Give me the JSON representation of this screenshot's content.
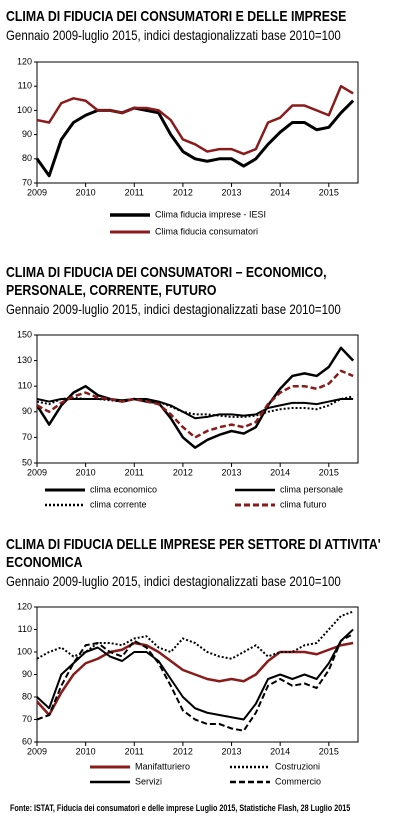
{
  "chart_data": [
    {
      "type": "line",
      "title": "CLIMA DI FIDUCIA DEI CONSUMATORI E DELLE IMPRESE",
      "subtitle": "Gennaio 2009-luglio 2015, indici destagionalizzati base 2010=100",
      "x": [
        2009,
        2009.25,
        2009.5,
        2009.75,
        2010,
        2010.25,
        2010.5,
        2010.75,
        2011,
        2011.25,
        2011.5,
        2011.75,
        2012,
        2012.25,
        2012.5,
        2012.75,
        2013,
        2013.25,
        2013.5,
        2013.75,
        2014,
        2014.25,
        2014.5,
        2014.75,
        2015,
        2015.25,
        2015.5
      ],
      "xlim": [
        2009,
        2015.6
      ],
      "xticks": [
        2009,
        2010,
        2011,
        2012,
        2013,
        2014,
        2015
      ],
      "ylim": [
        70,
        120
      ],
      "yticks": [
        70,
        80,
        90,
        100,
        110,
        120
      ],
      "series": [
        {
          "name": "Clima fiducia imprese - IESI",
          "color": "#000000",
          "line_style": "solid",
          "width": 3,
          "values": [
            80,
            73,
            88,
            95,
            98,
            100,
            100,
            99,
            101,
            100,
            99,
            90,
            83,
            80,
            79,
            80,
            80,
            77,
            80,
            86,
            91,
            95,
            95,
            92,
            93,
            99,
            104
          ]
        },
        {
          "name": "Clima fiducia consumatori",
          "color": "#8b1a1a",
          "line_style": "solid",
          "width": 2.5,
          "values": [
            96,
            95,
            103,
            105,
            104,
            100,
            100,
            99,
            101,
            101,
            100,
            96,
            88,
            86,
            83,
            84,
            84,
            82,
            84,
            95,
            97,
            102,
            102,
            100,
            98,
            110,
            107
          ]
        }
      ]
    },
    {
      "type": "line",
      "title": "CLIMA DI FIDUCIA DEI CONSUMATORI – ECONOMICO, PERSONALE, CORRENTE, FUTURO",
      "subtitle": "Gennaio 2009-luglio 2015, indici destagionalizzati base 2010=100",
      "x": [
        2009,
        2009.25,
        2009.5,
        2009.75,
        2010,
        2010.25,
        2010.5,
        2010.75,
        2011,
        2011.25,
        2011.5,
        2011.75,
        2012,
        2012.25,
        2012.5,
        2012.75,
        2013,
        2013.25,
        2013.5,
        2013.75,
        2014,
        2014.25,
        2014.5,
        2014.75,
        2015,
        2015.25,
        2015.5
      ],
      "xlim": [
        2009,
        2015.6
      ],
      "xticks": [
        2009,
        2010,
        2011,
        2012,
        2013,
        2014,
        2015
      ],
      "ylim": [
        50,
        150
      ],
      "yticks": [
        50,
        70,
        90,
        110,
        130,
        150
      ],
      "series": [
        {
          "name": "clima economico",
          "color": "#000000",
          "line_style": "solid",
          "width": 2.5,
          "values": [
            95,
            80,
            95,
            105,
            110,
            103,
            100,
            98,
            100,
            98,
            97,
            85,
            70,
            62,
            68,
            72,
            75,
            73,
            78,
            95,
            108,
            118,
            120,
            118,
            125,
            140,
            130
          ]
        },
        {
          "name": "clima personale",
          "color": "#000000",
          "line_style": "solid",
          "width": 2,
          "values": [
            100,
            98,
            100,
            100,
            100,
            100,
            100,
            99,
            100,
            100,
            98,
            95,
            90,
            85,
            86,
            88,
            88,
            87,
            88,
            93,
            95,
            97,
            97,
            96,
            98,
            100,
            100
          ]
        },
        {
          "name": "clima corrente",
          "color": "#000000",
          "line_style": "dotted",
          "width": 2,
          "values": [
            98,
            96,
            100,
            101,
            100,
            100,
            99,
            98,
            100,
            99,
            98,
            94,
            90,
            88,
            88,
            87,
            86,
            86,
            87,
            90,
            92,
            93,
            93,
            92,
            95,
            100,
            102
          ]
        },
        {
          "name": "clima futuro",
          "color": "#8b1a1a",
          "line_style": "dashed",
          "width": 2.5,
          "values": [
            95,
            90,
            97,
            102,
            105,
            101,
            100,
            98,
            100,
            98,
            96,
            88,
            78,
            70,
            75,
            78,
            80,
            78,
            82,
            96,
            105,
            110,
            110,
            108,
            112,
            122,
            118
          ]
        }
      ]
    },
    {
      "type": "line",
      "title": "CLIMA DI FIDUCIA DELLE IMPRESE PER SETTORE DI ATTIVITA' ECONOMICA",
      "subtitle": "Gennaio 2009-luglio 2015, indici destagionalizzati base 2010=100",
      "x": [
        2009,
        2009.25,
        2009.5,
        2009.75,
        2010,
        2010.25,
        2010.5,
        2010.75,
        2011,
        2011.25,
        2011.5,
        2011.75,
        2012,
        2012.25,
        2012.5,
        2012.75,
        2013,
        2013.25,
        2013.5,
        2013.75,
        2014,
        2014.25,
        2014.5,
        2014.75,
        2015,
        2015.25,
        2015.5
      ],
      "xlim": [
        2009,
        2015.6
      ],
      "xticks": [
        2009,
        2010,
        2011,
        2012,
        2013,
        2014,
        2015
      ],
      "ylim": [
        60,
        120
      ],
      "yticks": [
        60,
        70,
        80,
        90,
        100,
        110,
        120
      ],
      "series": [
        {
          "name": "Manifatturiero",
          "color": "#8b1a1a",
          "line_style": "solid",
          "width": 2.5,
          "values": [
            78,
            72,
            82,
            90,
            95,
            97,
            100,
            101,
            104,
            103,
            100,
            96,
            92,
            90,
            88,
            87,
            88,
            87,
            90,
            96,
            100,
            100,
            100,
            99,
            101,
            103,
            104
          ]
        },
        {
          "name": "Costruzioni",
          "color": "#000000",
          "line_style": "dotted",
          "width": 2,
          "values": [
            97,
            100,
            102,
            98,
            100,
            104,
            104,
            103,
            106,
            107,
            102,
            100,
            106,
            104,
            100,
            98,
            97,
            100,
            103,
            98,
            100,
            100,
            103,
            104,
            110,
            116,
            118
          ]
        },
        {
          "name": "Servizi",
          "color": "#000000",
          "line_style": "solid",
          "width": 2,
          "values": [
            80,
            75,
            90,
            95,
            100,
            102,
            98,
            96,
            100,
            100,
            96,
            88,
            80,
            75,
            73,
            72,
            71,
            70,
            77,
            88,
            90,
            88,
            90,
            88,
            95,
            105,
            110
          ]
        },
        {
          "name": "Commercio",
          "color": "#000000",
          "line_style": "dashed",
          "width": 2,
          "values": [
            70,
            72,
            85,
            95,
            103,
            104,
            100,
            98,
            105,
            102,
            95,
            85,
            74,
            70,
            68,
            68,
            66,
            65,
            73,
            85,
            88,
            85,
            86,
            84,
            92,
            105,
            108
          ]
        }
      ]
    }
  ],
  "source": "Fonte: ISTAT, Fiducia dei consumatori e delle imprese Luglio 2015, Statistiche Flash, 28 Luglio 2015"
}
